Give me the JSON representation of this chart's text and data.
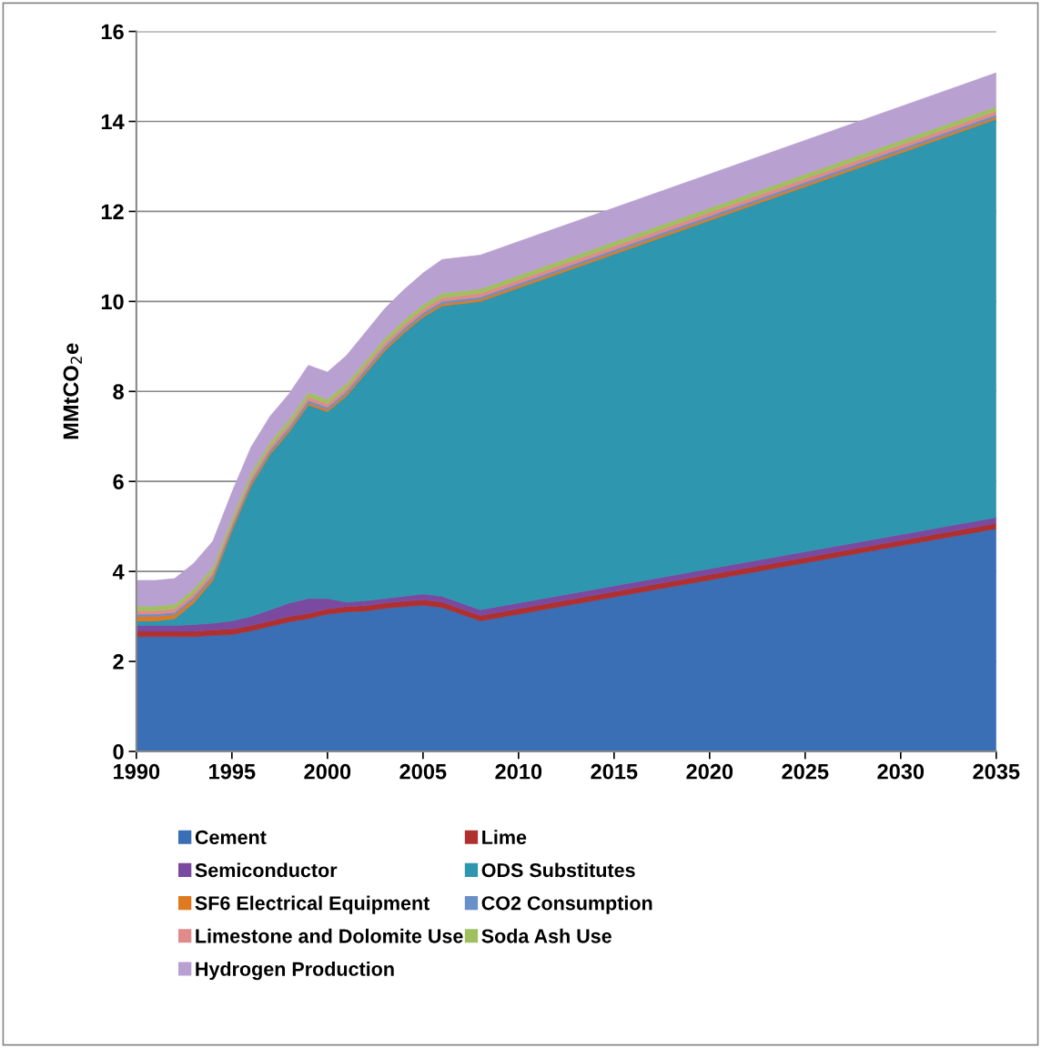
{
  "chart_data": {
    "type": "area",
    "stacked": true,
    "ylabel": "MMtCO$_{2}$e",
    "x": [
      1990,
      1991,
      1992,
      1993,
      1994,
      1995,
      1996,
      1997,
      1998,
      1999,
      2000,
      2001,
      2002,
      2003,
      2004,
      2005,
      2006,
      2007,
      2008,
      2035
    ],
    "xlim": [
      1990,
      2035
    ],
    "xticks": [
      1990,
      1995,
      2000,
      2005,
      2010,
      2015,
      2020,
      2025,
      2030,
      2035
    ],
    "ylim": [
      0,
      16
    ],
    "yticks": [
      0,
      2,
      4,
      6,
      8,
      10,
      12,
      14,
      16
    ],
    "grid": "y",
    "legend": "bottom",
    "series": [
      {
        "name": "Cement",
        "color": "#3a6eb5",
        "values": [
          2.55,
          2.55,
          2.55,
          2.55,
          2.58,
          2.6,
          2.68,
          2.78,
          2.88,
          2.95,
          3.05,
          3.1,
          3.12,
          3.18,
          3.22,
          3.25,
          3.2,
          3.05,
          2.9,
          4.95
        ]
      },
      {
        "name": "Lime",
        "color": "#b03030",
        "values": [
          0.12,
          0.12,
          0.12,
          0.12,
          0.12,
          0.12,
          0.12,
          0.12,
          0.12,
          0.12,
          0.12,
          0.12,
          0.12,
          0.12,
          0.12,
          0.12,
          0.12,
          0.12,
          0.12,
          0.12
        ]
      },
      {
        "name": "Semiconductor",
        "color": "#7a4aa0",
        "values": [
          0.13,
          0.13,
          0.13,
          0.15,
          0.15,
          0.18,
          0.2,
          0.25,
          0.3,
          0.33,
          0.23,
          0.1,
          0.11,
          0.1,
          0.11,
          0.13,
          0.13,
          0.13,
          0.13,
          0.13
        ]
      },
      {
        "name": "ODS Substitutes",
        "color": "#2e96ae",
        "values": [
          0.1,
          0.1,
          0.15,
          0.48,
          0.95,
          2.0,
          2.9,
          3.45,
          3.8,
          4.3,
          4.15,
          4.58,
          5.05,
          5.5,
          5.85,
          6.15,
          6.45,
          6.65,
          6.85,
          8.85
        ]
      },
      {
        "name": "SF6 Electrical Equipment",
        "color": "#e07a20",
        "values": [
          0.1,
          0.1,
          0.09,
          0.08,
          0.07,
          0.06,
          0.06,
          0.05,
          0.05,
          0.05,
          0.05,
          0.05,
          0.05,
          0.05,
          0.05,
          0.05,
          0.05,
          0.05,
          0.05,
          0.05
        ]
      },
      {
        "name": "CO2 Consumption",
        "color": "#6a90c8",
        "values": [
          0.05,
          0.05,
          0.05,
          0.05,
          0.05,
          0.05,
          0.05,
          0.05,
          0.05,
          0.05,
          0.05,
          0.05,
          0.05,
          0.05,
          0.05,
          0.05,
          0.05,
          0.05,
          0.05,
          0.05
        ]
      },
      {
        "name": "Limestone and Dolomite Use",
        "color": "#e08a8a",
        "values": [
          0.08,
          0.08,
          0.08,
          0.08,
          0.08,
          0.08,
          0.08,
          0.08,
          0.08,
          0.08,
          0.08,
          0.08,
          0.08,
          0.08,
          0.08,
          0.08,
          0.08,
          0.08,
          0.08,
          0.08
        ]
      },
      {
        "name": "Soda Ash Use",
        "color": "#a0c060",
        "values": [
          0.1,
          0.1,
          0.1,
          0.1,
          0.1,
          0.1,
          0.1,
          0.1,
          0.1,
          0.1,
          0.1,
          0.1,
          0.1,
          0.1,
          0.1,
          0.1,
          0.1,
          0.1,
          0.1,
          0.1
        ]
      },
      {
        "name": "Hydrogen Production",
        "color": "#b8a0d0",
        "values": [
          0.57,
          0.57,
          0.57,
          0.57,
          0.57,
          0.57,
          0.57,
          0.57,
          0.57,
          0.6,
          0.6,
          0.62,
          0.64,
          0.66,
          0.68,
          0.7,
          0.75,
          0.75,
          0.75,
          0.75
        ]
      }
    ]
  }
}
